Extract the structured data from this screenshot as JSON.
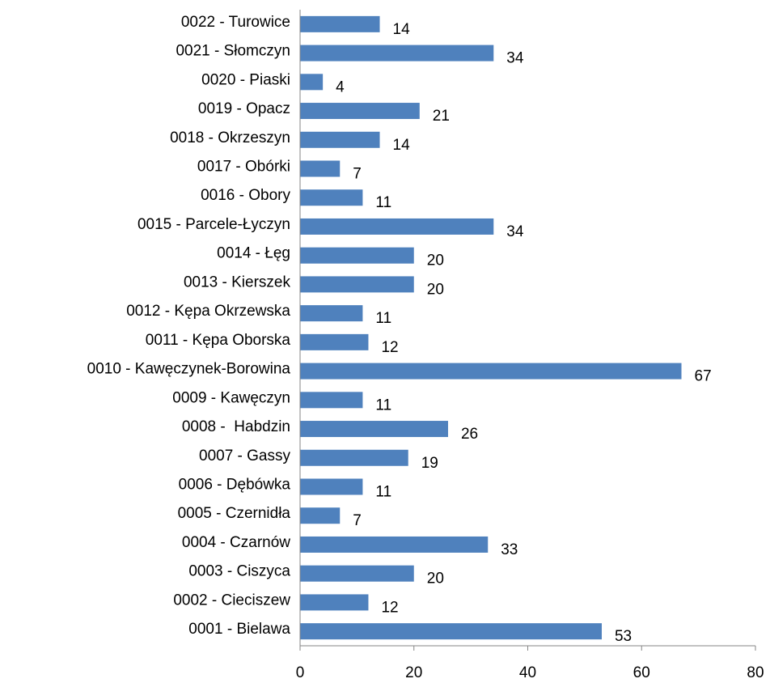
{
  "chart_data": {
    "type": "barh",
    "categories": [
      "0001 - Bielawa",
      "0002 - Cieciszew",
      "0003 - Ciszyca",
      "0004 - Czarnów",
      "0005 - Czernidła",
      "0006 - Dębówka",
      "0007 - Gassy",
      "0008 -  Habdzin",
      "0009 - Kawęczyn",
      "0010 - Kawęczynek-Borowina",
      "0011 - Kępa Oborska",
      "0012 - Kępa Okrzewska",
      "0013 - Kierszek",
      "0014 - Łęg",
      "0015 - Parcele-Łyczyn",
      "0016 - Obory",
      "0017 - Obórki",
      "0018 - Okrzeszyn",
      "0019 - Opacz",
      "0020 - Piaski",
      "0021 - Słomczyn",
      "0022 - Turowice"
    ],
    "values": [
      53,
      12,
      20,
      33,
      7,
      11,
      19,
      26,
      11,
      67,
      12,
      11,
      20,
      20,
      34,
      11,
      7,
      14,
      21,
      4,
      34,
      14
    ],
    "color": "#4f81bd",
    "xlim": [
      0,
      80
    ],
    "xticks": [
      0,
      20,
      40,
      60,
      80
    ]
  }
}
